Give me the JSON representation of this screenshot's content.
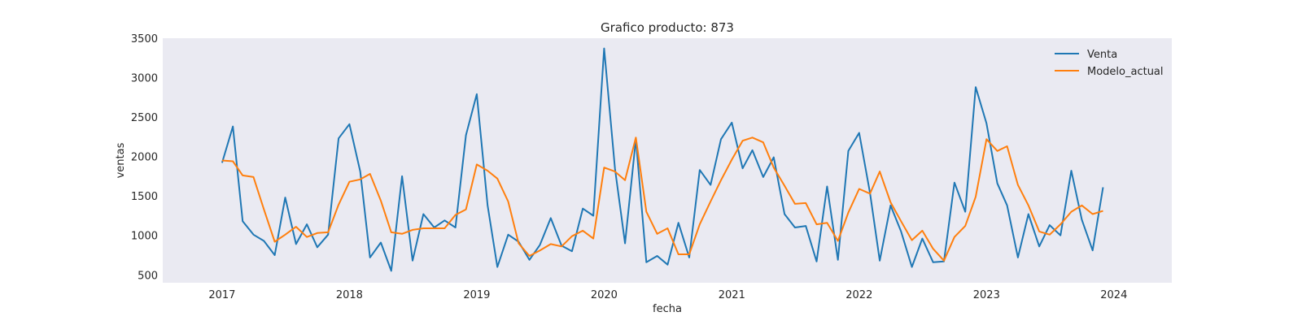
{
  "chart_data": {
    "type": "line",
    "title": "Grafico producto: 873",
    "xlabel": "fecha",
    "ylabel": "ventas",
    "x_start": "2017-01",
    "x_end": "2023-12",
    "x_frequency": "monthly",
    "xlim": [
      "2016-07-15",
      "2024-06-15"
    ],
    "ylim": [
      400,
      3500
    ],
    "x_ticks": [
      "2017",
      "2018",
      "2019",
      "2020",
      "2021",
      "2022",
      "2023",
      "2024"
    ],
    "y_ticks": [
      500,
      1000,
      1500,
      2000,
      2500,
      3000,
      3500
    ],
    "grid": false,
    "background": "#eaeaf2",
    "legend_position": "top-right",
    "series": [
      {
        "name": "Venta",
        "color": "#1f77b4",
        "values": [
          1920,
          2380,
          1180,
          1010,
          930,
          750,
          1480,
          890,
          1140,
          850,
          1010,
          2230,
          2410,
          1810,
          720,
          910,
          550,
          1750,
          680,
          1270,
          1100,
          1190,
          1100,
          2270,
          2790,
          1380,
          600,
          1010,
          920,
          690,
          880,
          1220,
          870,
          800,
          1340,
          1250,
          3370,
          1850,
          900,
          2220,
          660,
          740,
          630,
          1160,
          720,
          1830,
          1640,
          2220,
          2430,
          1850,
          2080,
          1740,
          1990,
          1270,
          1100,
          1120,
          670,
          1620,
          690,
          2070,
          2300,
          1540,
          680,
          1380,
          1050,
          600,
          960,
          660,
          670,
          1670,
          1300,
          2880,
          2420,
          1660,
          1380,
          720,
          1270,
          860,
          1130,
          1000,
          1820,
          1200,
          810,
          1610
        ]
      },
      {
        "name": "Modelo_actual",
        "color": "#ff7f0e",
        "values": [
          1950,
          1940,
          1760,
          1740,
          1330,
          920,
          1010,
          1110,
          980,
          1030,
          1040,
          1390,
          1680,
          1710,
          1780,
          1440,
          1040,
          1020,
          1070,
          1090,
          1090,
          1090,
          1260,
          1330,
          1900,
          1820,
          1720,
          1430,
          900,
          740,
          810,
          890,
          860,
          990,
          1060,
          960,
          1860,
          1810,
          1700,
          2240,
          1300,
          1020,
          1090,
          760,
          760,
          1140,
          1430,
          1700,
          1960,
          2200,
          2240,
          2180,
          1860,
          1630,
          1400,
          1410,
          1140,
          1160,
          930,
          1290,
          1590,
          1530,
          1810,
          1420,
          1180,
          940,
          1060,
          830,
          680,
          980,
          1120,
          1490,
          2220,
          2070,
          2130,
          1640,
          1380,
          1050,
          1010,
          1140,
          1300,
          1380,
          1270,
          1310
        ]
      }
    ]
  }
}
